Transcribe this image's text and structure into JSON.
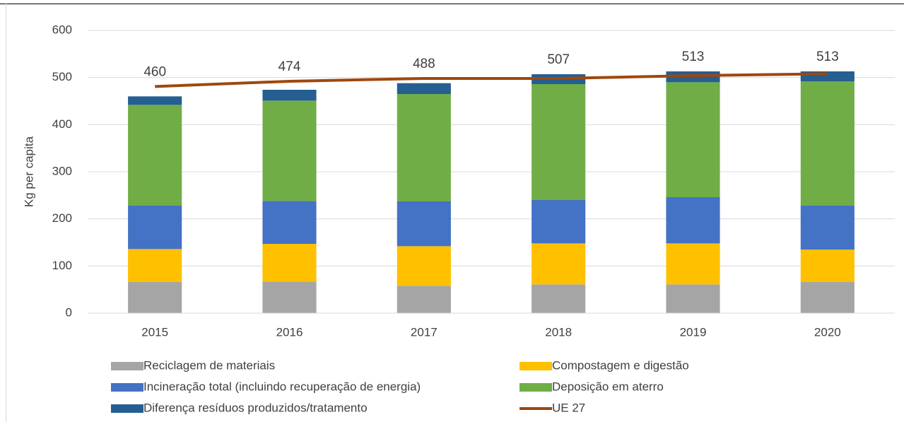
{
  "chart_data": {
    "type": "bar",
    "stacked": true,
    "ylabel": "Kg per capita",
    "categories": [
      "2015",
      "2016",
      "2017",
      "2018",
      "2019",
      "2020"
    ],
    "series": [
      {
        "name": "Reciclagem de materiais",
        "color": "#a5a5a5",
        "values": [
          66,
          67,
          58,
          61,
          61,
          66
        ]
      },
      {
        "name": "Compostagem e digestão",
        "color": "#ffc000",
        "values": [
          70,
          80,
          84,
          87,
          87,
          69
        ]
      },
      {
        "name": "Incineração total (incluindo recuperação de energia)",
        "color": "#4472c4",
        "values": [
          92,
          91,
          95,
          92,
          98,
          93
        ]
      },
      {
        "name": "Deposição em aterro",
        "color": "#70ad47",
        "values": [
          214,
          213,
          228,
          246,
          244,
          264
        ]
      },
      {
        "name": "Diferença resíduos produzidos/tratamento",
        "color": "#255e91",
        "values": [
          18,
          23,
          23,
          21,
          23,
          21
        ]
      },
      {
        "name": "UE 27",
        "color": "#9e480e",
        "type": "line",
        "values": [
          481,
          492,
          498,
          498,
          504,
          508
        ]
      }
    ],
    "totals": [
      460,
      474,
      488,
      507,
      513,
      513
    ],
    "ylim": [
      0,
      600
    ],
    "yticks": [
      0,
      100,
      200,
      300,
      400,
      500,
      600
    ],
    "grid": true
  }
}
